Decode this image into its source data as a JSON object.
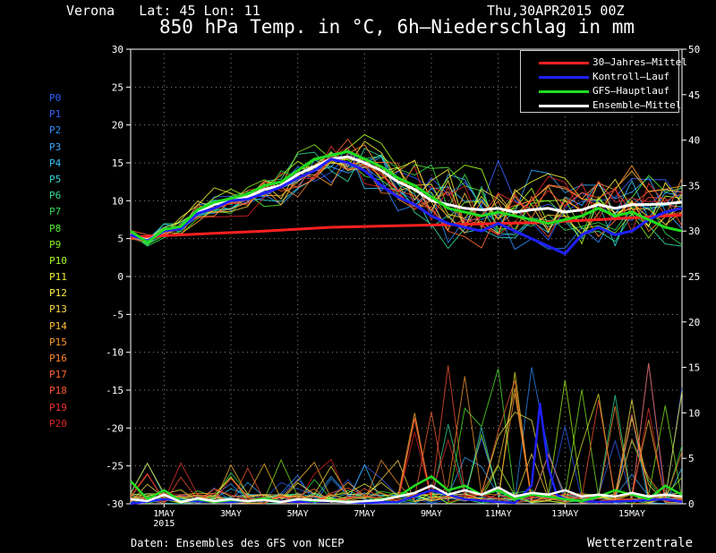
{
  "header": {
    "location": "Verona   Lat: 45 Lon: 11",
    "date": "Thu,30APR2015 00Z",
    "title": "850 hPa Temp. in °C, 6h–Niederschlag in mm"
  },
  "footer": {
    "credit": "Daten: Ensembles des GFS von NCEP",
    "brand": "Wetterzentrale"
  },
  "members": [
    "P0",
    "P1",
    "P2",
    "P3",
    "P4",
    "P5",
    "P6",
    "P7",
    "P8",
    "P9",
    "P10",
    "P11",
    "P12",
    "P13",
    "P14",
    "P15",
    "P16",
    "P17",
    "P18",
    "P19",
    "P20"
  ],
  "member_colors": [
    "#2a5dff",
    "#3a60ff",
    "#2a8cff",
    "#36a8ff",
    "#33c4ff",
    "#33d6d6",
    "#33dd99",
    "#33dd55",
    "#55ee33",
    "#88ee22",
    "#aaff22",
    "#eeee33",
    "#ffee44",
    "#ffdd44",
    "#ffbb33",
    "#ff9933",
    "#ff8833",
    "#ff6633",
    "#ff5533",
    "#ee3333",
    "#dd2222"
  ],
  "legend": [
    {
      "label": "30–Jahres–Mittel",
      "color": "#ff2020"
    },
    {
      "label": "Kontroll–Lauf",
      "color": "#2020ff"
    },
    {
      "label": "GFS–Hauptlauf",
      "color": "#20dd20"
    },
    {
      "label": "Ensemble–Mittel",
      "color": "#ffffff"
    }
  ],
  "chart_data": {
    "type": "line",
    "y_left": {
      "min": -30,
      "max": 30,
      "ticks": [
        -30,
        -25,
        -20,
        -15,
        -10,
        -5,
        0,
        5,
        10,
        15,
        20,
        25,
        30
      ]
    },
    "y_right": {
      "min": 0,
      "max": 50,
      "ticks": [
        0,
        5,
        10,
        15,
        20,
        25,
        30,
        35,
        40,
        45,
        50
      ]
    },
    "x_range_days": [
      0,
      16.5
    ],
    "x_ticks": [
      {
        "label": "1MAY",
        "sub": "2015",
        "day": 1
      },
      {
        "label": "3MAY",
        "sub": "",
        "day": 3
      },
      {
        "label": "5MAY",
        "sub": "",
        "day": 5
      },
      {
        "label": "7MAY",
        "sub": "",
        "day": 7
      },
      {
        "label": "9MAY",
        "sub": "",
        "day": 9
      },
      {
        "label": "11MAY",
        "sub": "",
        "day": 11
      },
      {
        "label": "13MAY",
        "sub": "",
        "day": 13
      },
      {
        "label": "15MAY",
        "sub": "",
        "day": 15
      }
    ],
    "grid": true,
    "legend_position": "top-right",
    "series": [
      {
        "name": "30–Jahres–Mittel",
        "axis": "left",
        "color": "#ff2020",
        "x": [
          0,
          2,
          4,
          6,
          8,
          10,
          12,
          14,
          16,
          16.5
        ],
        "y": [
          5.2,
          5.6,
          6.0,
          6.5,
          6.7,
          6.9,
          7.1,
          7.5,
          8.0,
          8.1
        ]
      },
      {
        "name": "Ensemble–Mittel",
        "axis": "left",
        "color": "#ffffff",
        "x": [
          0,
          0.5,
          1,
          1.5,
          2,
          2.5,
          3,
          3.5,
          4,
          4.5,
          5,
          5.5,
          6,
          6.5,
          7,
          7.5,
          8,
          8.5,
          9,
          9.5,
          10,
          10.5,
          11,
          11.5,
          12,
          12.5,
          13,
          13.5,
          14,
          14.5,
          15,
          15.5,
          16,
          16.5
        ],
        "y": [
          5.5,
          4.8,
          6.0,
          6.5,
          8.5,
          9.5,
          10.0,
          10.5,
          11.5,
          12.0,
          13.5,
          14.5,
          15.5,
          15.8,
          15.0,
          14.0,
          12.5,
          11.5,
          10.0,
          9.5,
          9.0,
          8.8,
          9.0,
          8.5,
          8.8,
          9.0,
          8.5,
          8.8,
          9.5,
          9.0,
          9.5,
          9.5,
          9.6,
          9.8
        ]
      },
      {
        "name": "Kontroll–Lauf",
        "axis": "left",
        "color": "#2020ff",
        "x": [
          0,
          0.5,
          1,
          1.5,
          2,
          2.5,
          3,
          3.5,
          4,
          4.5,
          5,
          5.5,
          6,
          6.5,
          7,
          7.5,
          8,
          8.5,
          9,
          9.5,
          10,
          10.5,
          11,
          11.5,
          12,
          12.5,
          13,
          13.5,
          14,
          14.5,
          15,
          15.5,
          16,
          16.5
        ],
        "y": [
          5.5,
          4.7,
          6.0,
          6.3,
          8.3,
          9.0,
          10.0,
          10.2,
          11.0,
          11.8,
          13.0,
          14.0,
          15.5,
          15.0,
          14.0,
          12.0,
          10.5,
          9.5,
          8.0,
          7.0,
          6.5,
          6.0,
          7.0,
          6.0,
          5.0,
          4.0,
          3.0,
          5.5,
          6.5,
          5.5,
          6.0,
          7.5,
          8.5,
          9.0
        ]
      },
      {
        "name": "GFS–Hauptlauf",
        "axis": "left",
        "color": "#20dd20",
        "x": [
          0,
          0.5,
          1,
          1.5,
          2,
          2.5,
          3,
          3.5,
          4,
          4.5,
          5,
          5.5,
          6,
          6.5,
          7,
          7.5,
          8,
          8.5,
          9,
          9.5,
          10,
          10.5,
          11,
          11.5,
          12,
          12.5,
          13,
          13.5,
          14,
          14.5,
          15,
          15.5,
          16,
          16.5
        ],
        "y": [
          6.0,
          4.5,
          6.2,
          6.6,
          8.8,
          9.8,
          10.3,
          10.9,
          12.0,
          12.5,
          14.0,
          15.5,
          16.0,
          16.5,
          15.5,
          14.5,
          13.0,
          12.0,
          10.5,
          9.0,
          8.5,
          8.0,
          8.5,
          8.0,
          7.5,
          7.0,
          7.5,
          8.0,
          9.0,
          8.0,
          8.5,
          7.5,
          6.5,
          6.0
        ]
      },
      {
        "name": "Kontroll–Lauf",
        "axis": "right",
        "color": "#2020ff",
        "x": [
          0,
          1,
          2,
          3,
          4,
          5,
          6,
          7,
          8,
          9,
          10,
          11,
          11.5,
          12,
          12.25,
          12.5,
          12.75,
          13,
          13.5,
          14,
          15,
          16,
          16.5
        ],
        "y": [
          0,
          0.5,
          0.3,
          0.2,
          0.4,
          0.2,
          0.3,
          0.1,
          0.2,
          1.5,
          0.5,
          0.2,
          0.1,
          2.0,
          11.0,
          4.0,
          1.0,
          0.5,
          0.3,
          0.2,
          0.3,
          0.5,
          0.2
        ]
      },
      {
        "name": "GFS–Hauptlauf",
        "axis": "right",
        "color": "#20dd20",
        "x": [
          0,
          0.5,
          1,
          1.5,
          2,
          2.5,
          3,
          3.5,
          4,
          4.5,
          5,
          5.5,
          6,
          6.5,
          7,
          7.5,
          8,
          8.5,
          9,
          9.5,
          10,
          10.5,
          11,
          11.5,
          12,
          12.5,
          13,
          13.5,
          14,
          14.5,
          15,
          15.5,
          16,
          16.5
        ],
        "y": [
          2.5,
          0.5,
          1.5,
          0.3,
          0.5,
          0.2,
          0.4,
          0.3,
          0.6,
          0.2,
          0.5,
          0.3,
          0.4,
          0.2,
          0.3,
          0.5,
          0.8,
          2.0,
          3.0,
          1.5,
          2.0,
          1.0,
          1.5,
          0.5,
          1.0,
          0.8,
          0.5,
          0.3,
          0.8,
          1.5,
          1.0,
          0.5,
          2.0,
          1.0
        ]
      },
      {
        "name": "Ensemble–Mittel",
        "axis": "right",
        "color": "#ffffff",
        "x": [
          0,
          0.5,
          1,
          1.5,
          2,
          2.5,
          3,
          3.5,
          4,
          4.5,
          5,
          5.5,
          6,
          6.5,
          7,
          7.5,
          8,
          8.5,
          9,
          9.5,
          10,
          10.5,
          11,
          11.5,
          12,
          12.5,
          13,
          13.5,
          14,
          14.5,
          15,
          15.5,
          16,
          16.5
        ],
        "y": [
          0.5,
          0.3,
          1.0,
          0.2,
          0.6,
          0.3,
          0.5,
          0.3,
          0.4,
          0.2,
          0.5,
          0.4,
          0.3,
          0.2,
          0.3,
          0.4,
          0.8,
          1.2,
          2.0,
          1.0,
          1.5,
          1.0,
          1.8,
          0.8,
          1.2,
          1.0,
          1.5,
          0.8,
          1.0,
          0.8,
          1.2,
          0.8,
          1.0,
          0.8
        ]
      }
    ]
  }
}
